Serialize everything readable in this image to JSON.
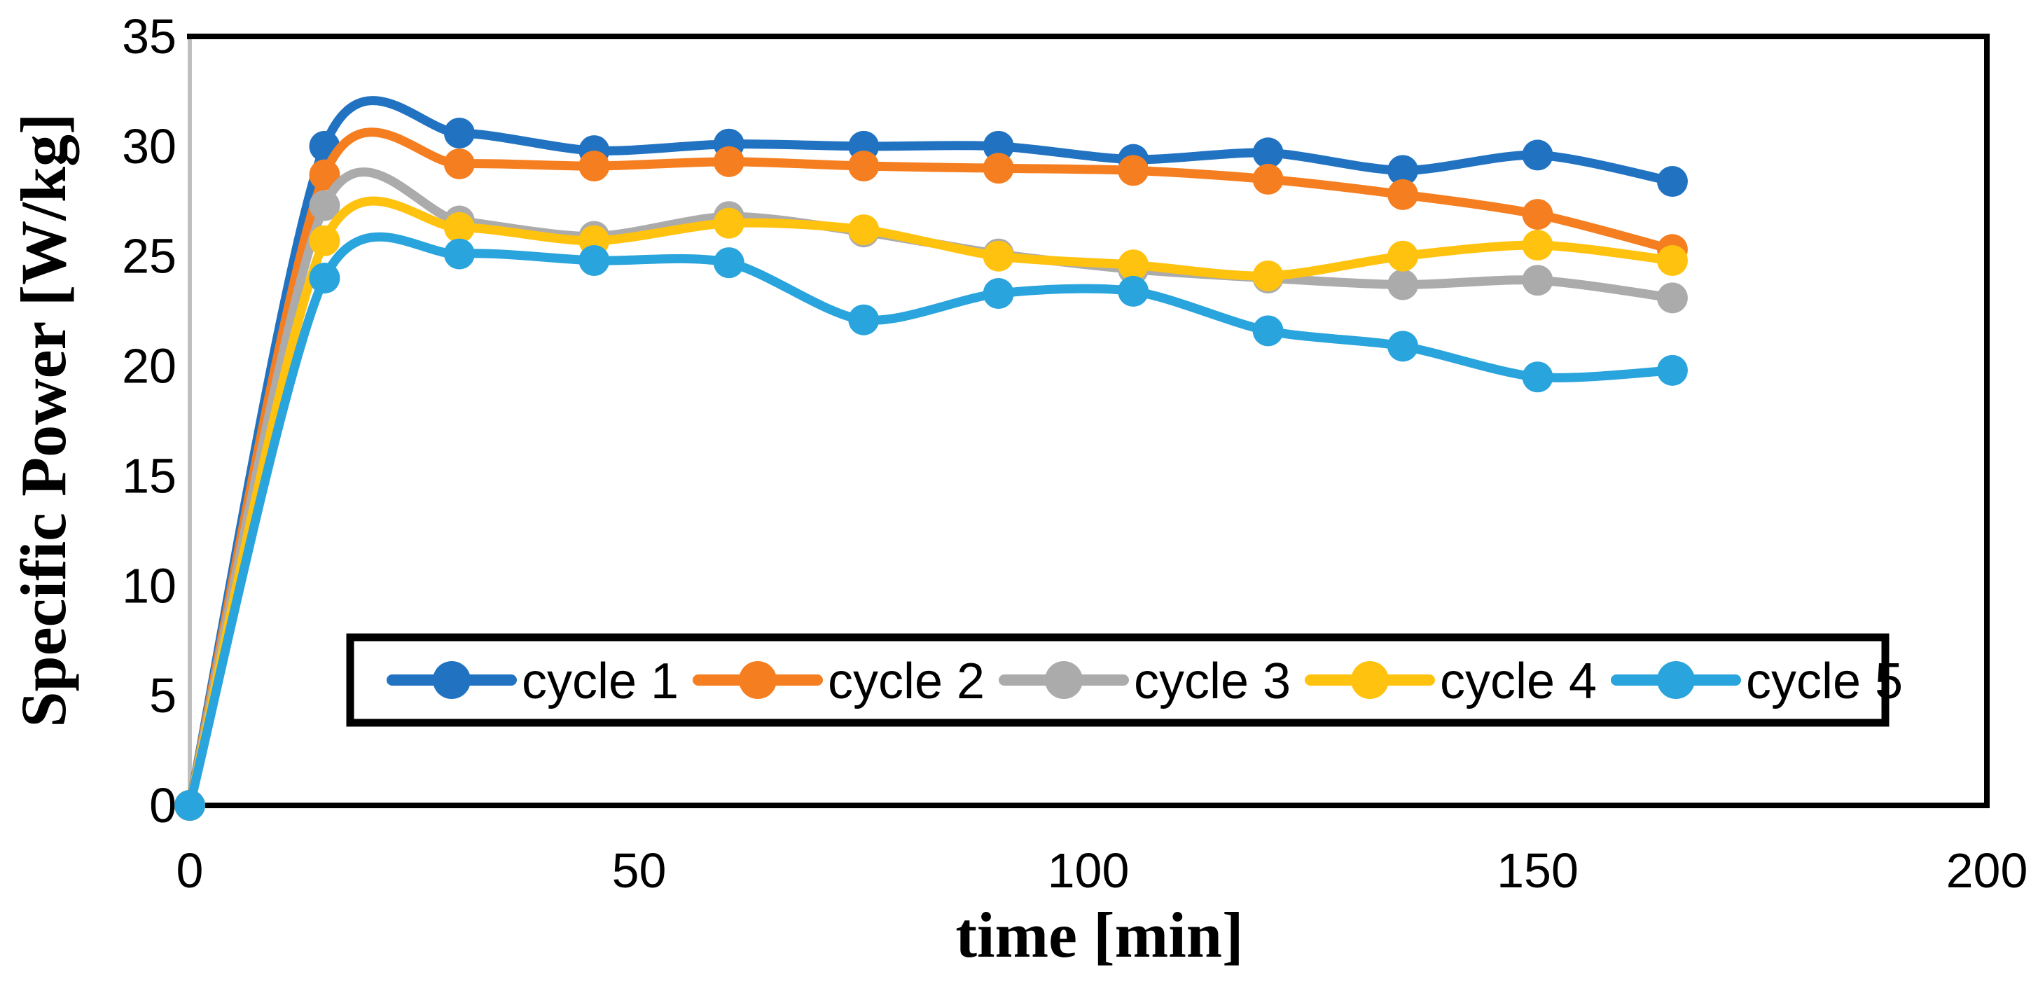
{
  "chart_data": {
    "type": "line",
    "title": "",
    "xlabel": "time [min]",
    "ylabel": "Specific Power [W/kg]",
    "xlim": [
      0,
      200
    ],
    "ylim": [
      0,
      35
    ],
    "x_ticks": [
      0,
      50,
      100,
      150,
      200
    ],
    "y_ticks": [
      0,
      5,
      10,
      15,
      20,
      25,
      30,
      35
    ],
    "grid": false,
    "smooth_lines": true,
    "marker_style": "filled-circle",
    "legend_position": "inside-bottom-center",
    "frame_color": "#000000",
    "left_axis_color": "#BFBFBF",
    "x": [
      0,
      15,
      30,
      45,
      60,
      75,
      90,
      105,
      120,
      135,
      150,
      165
    ],
    "series": [
      {
        "name": "cycle 1",
        "color": "#2173C2",
        "values": [
          0,
          30.0,
          30.6,
          29.8,
          30.1,
          30.0,
          30.0,
          29.4,
          29.7,
          28.9,
          29.6,
          28.4
        ]
      },
      {
        "name": "cycle 2",
        "color": "#F57E20",
        "values": [
          0,
          28.7,
          29.2,
          29.1,
          29.3,
          29.1,
          29.0,
          28.9,
          28.5,
          27.8,
          26.9,
          25.3
        ]
      },
      {
        "name": "cycle 3",
        "color": "#ABABAB",
        "values": [
          0,
          27.3,
          26.6,
          25.9,
          26.8,
          26.1,
          25.1,
          24.4,
          24.0,
          23.7,
          23.9,
          23.1
        ]
      },
      {
        "name": "cycle 4",
        "color": "#FFC20E",
        "values": [
          0,
          25.7,
          26.3,
          25.7,
          26.5,
          26.2,
          25.0,
          24.6,
          24.1,
          25.0,
          25.5,
          24.8
        ]
      },
      {
        "name": "cycle 5",
        "color": "#29A4DC",
        "values": [
          0,
          24.0,
          25.1,
          24.8,
          24.7,
          22.1,
          23.3,
          23.4,
          21.6,
          20.9,
          19.5,
          19.8
        ]
      }
    ]
  }
}
